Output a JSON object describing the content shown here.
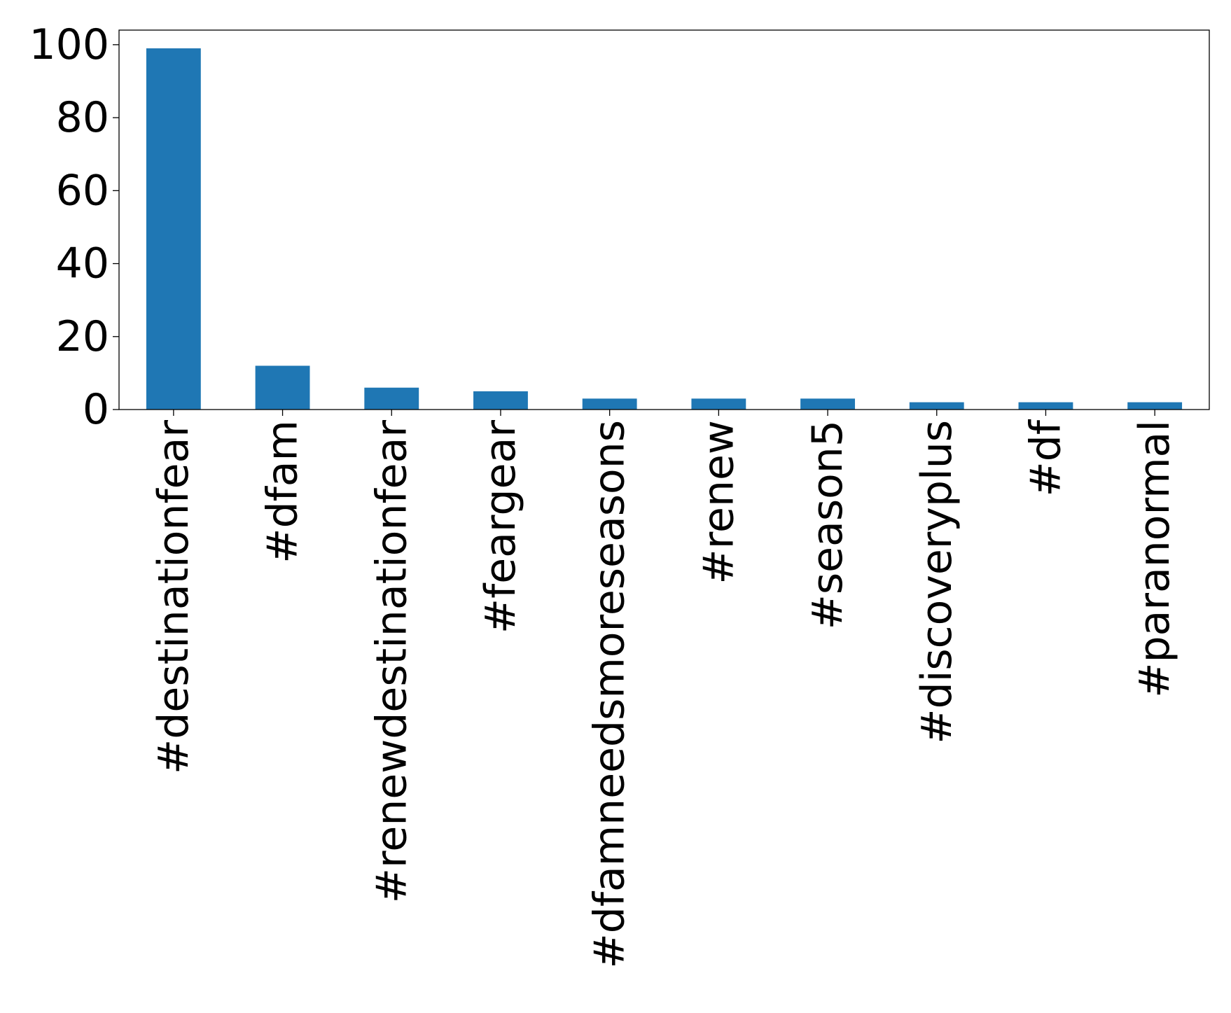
{
  "chart_data": {
    "type": "bar",
    "categories": [
      "#destinationfear",
      "#dfam",
      "#renewdestinationfear",
      "#feargear",
      "#dfamneedsmoreseasons",
      "#renew",
      "#season5",
      "#discoveryplus",
      "#df",
      "#paranormal"
    ],
    "values": [
      99,
      12,
      6,
      5,
      3,
      3,
      3,
      2,
      2,
      2
    ],
    "ylim": [
      0,
      104
    ],
    "yticks": [
      0,
      20,
      40,
      60,
      80,
      100
    ],
    "ytick_labels": [
      "0",
      "20",
      "40",
      "60",
      "80",
      "100"
    ],
    "bar_color": "#1f77b4",
    "grid": false,
    "legend": "none"
  }
}
